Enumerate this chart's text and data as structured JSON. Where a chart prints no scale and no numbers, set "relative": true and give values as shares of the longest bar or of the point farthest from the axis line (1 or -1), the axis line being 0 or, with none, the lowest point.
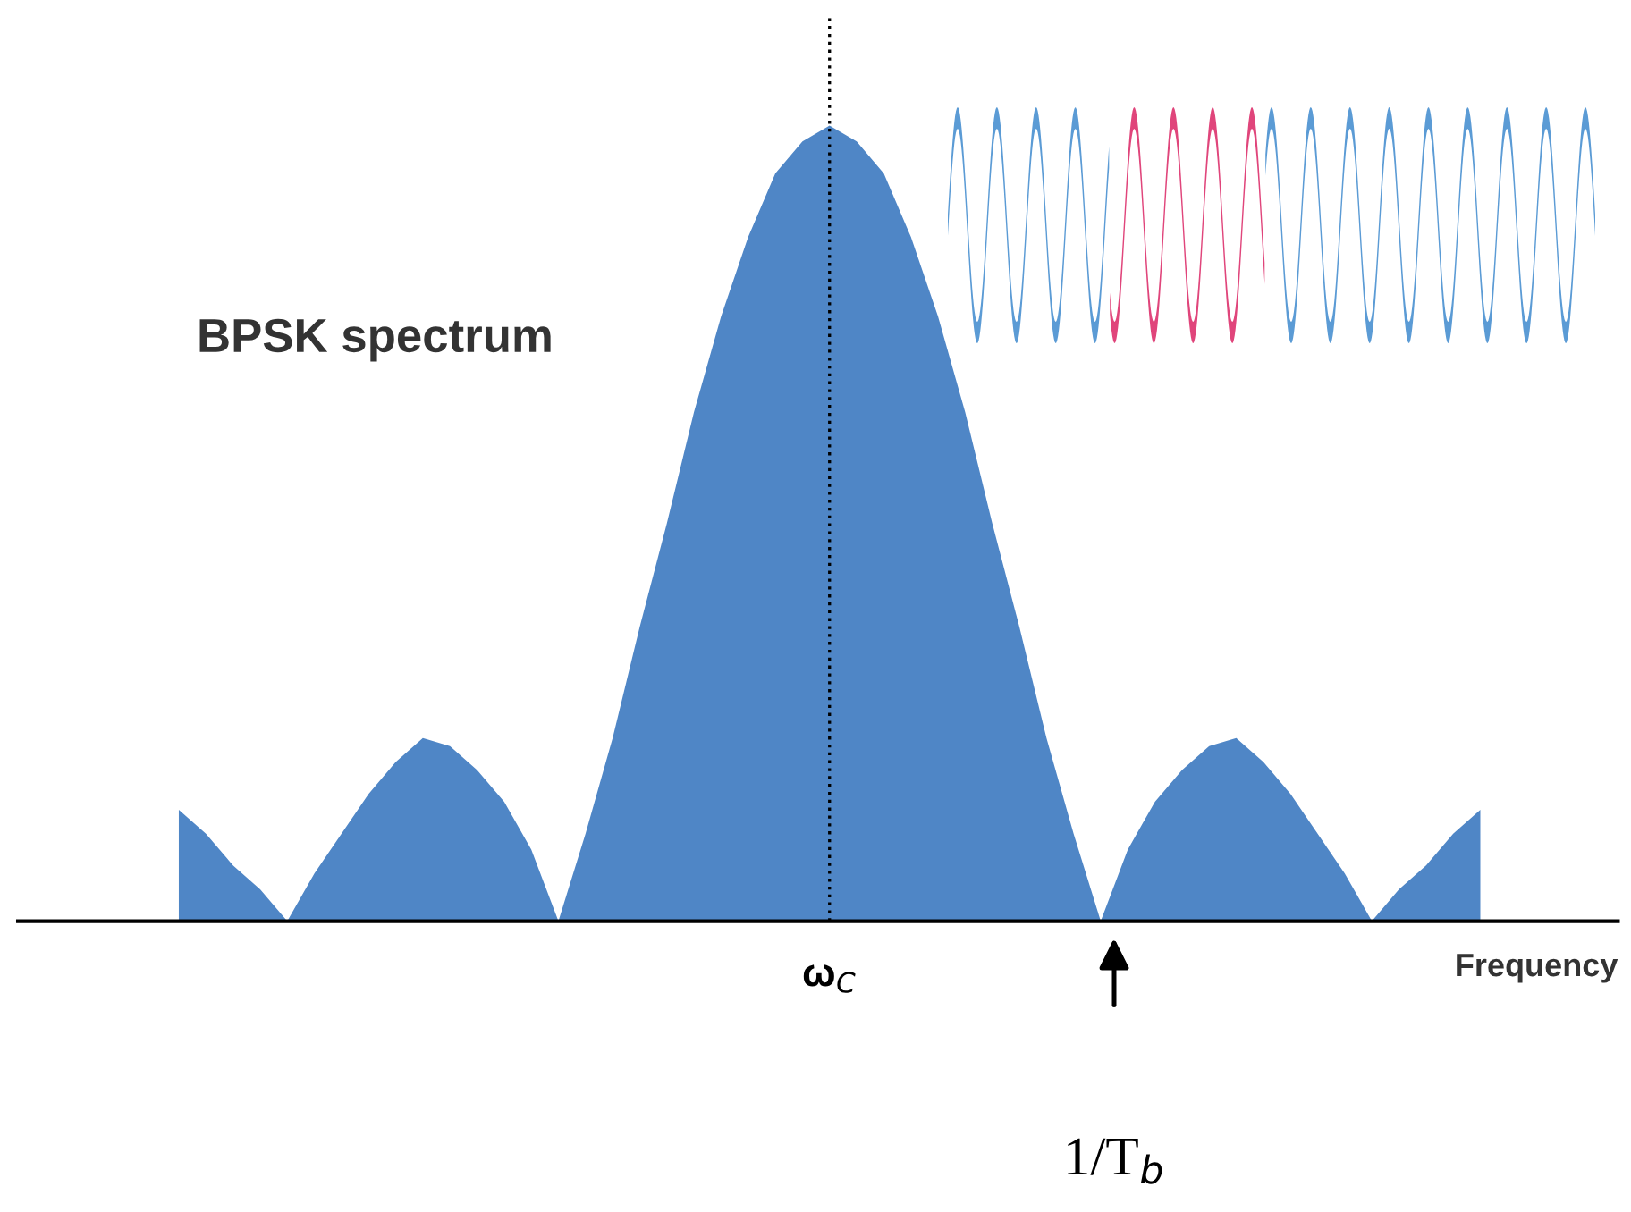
{
  "chart_data": {
    "type": "area",
    "relative": true,
    "xlabel": "Frequency",
    "categories": [
      null,
      null,
      null,
      null,
      null,
      null,
      null,
      null,
      null,
      null,
      null,
      null,
      null,
      null,
      null,
      null,
      null,
      null,
      null,
      null,
      null,
      null,
      null,
      null,
      null,
      null,
      null,
      null,
      null,
      null,
      null,
      null,
      null,
      null,
      null,
      null,
      null,
      null,
      null,
      null,
      null,
      null,
      null,
      null,
      null,
      null,
      null,
      null,
      null
    ],
    "series": [
      {
        "color": "#4f86c6",
        "values": [
          0.14,
          0.11,
          0.07,
          0.04,
          0,
          0.06,
          0.11,
          0.16,
          0.2,
          0.23,
          0.22,
          0.19,
          0.15,
          0.09,
          0,
          0.11,
          0.23,
          0.37,
          0.5,
          0.64,
          0.76,
          0.86,
          0.94,
          0.98,
          1,
          0.98,
          0.94,
          0.86,
          0.76,
          0.64,
          0.5,
          0.37,
          0.23,
          0.11,
          0,
          0.09,
          0.15,
          0.19,
          0.22,
          0.23,
          0.2,
          0.16,
          0.11,
          0.06,
          0,
          0.04,
          0.07,
          0.11,
          0.14
        ]
      }
    ],
    "annotations": [
      "BPSK spectrum",
      "1/T$_{b}$",
      "ω$_{C}$"
    ],
    "legend": false
  }
}
